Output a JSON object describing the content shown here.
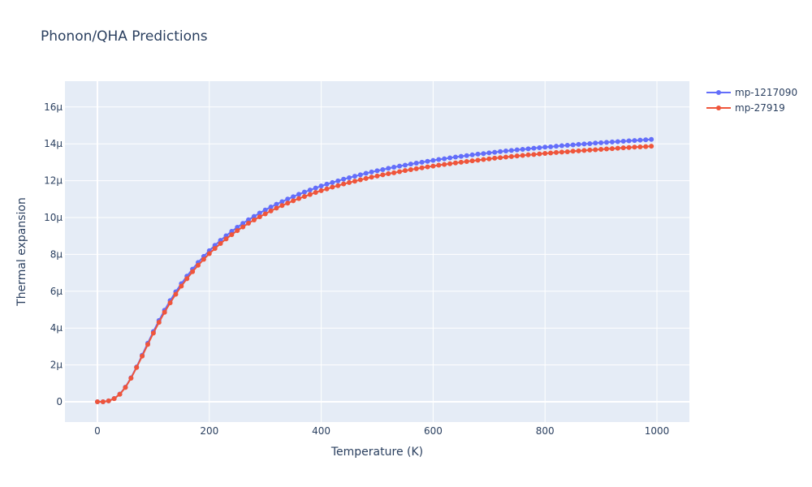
{
  "chart_data": {
    "type": "line",
    "title": "Phonon/QHA Predictions",
    "xlabel": "Temperature (K)",
    "ylabel": "Thermal expansion",
    "xlim": [
      -58,
      1058
    ],
    "ylim": [
      -1.1e-06,
      1.74e-05
    ],
    "xticks": [
      0,
      200,
      400,
      600,
      800,
      1000
    ],
    "xtick_labels": [
      "0",
      "200",
      "400",
      "600",
      "800",
      "1000"
    ],
    "yticks": [
      0,
      2e-06,
      4e-06,
      6e-06,
      8e-06,
      1e-05,
      1.2e-05,
      1.4e-05,
      1.6e-05
    ],
    "ytick_labels": [
      "0",
      "2μ",
      "4μ",
      "6μ",
      "8μ",
      "10μ",
      "12μ",
      "14μ",
      "16μ"
    ],
    "grid": true,
    "legend_position": "top-right",
    "x": [
      0,
      10,
      20,
      30,
      40,
      50,
      60,
      70,
      80,
      90,
      100,
      110,
      120,
      130,
      140,
      150,
      160,
      170,
      180,
      190,
      200,
      210,
      220,
      230,
      240,
      250,
      260,
      270,
      280,
      290,
      300,
      310,
      320,
      330,
      340,
      350,
      360,
      370,
      380,
      390,
      400,
      410,
      420,
      430,
      440,
      450,
      460,
      470,
      480,
      490,
      500,
      510,
      520,
      530,
      540,
      550,
      560,
      570,
      580,
      590,
      600,
      610,
      620,
      630,
      640,
      650,
      660,
      670,
      680,
      690,
      700,
      710,
      720,
      730,
      740,
      750,
      760,
      770,
      780,
      790,
      800,
      810,
      820,
      830,
      840,
      850,
      860,
      870,
      880,
      890,
      900,
      910,
      920,
      930,
      940,
      950,
      960,
      970,
      980,
      990
    ],
    "series": [
      {
        "name": "mp-1217090",
        "color": "#636efa",
        "values": [
          0,
          0,
          5.2e-08,
          1.76e-07,
          4.17e-07,
          7.93e-07,
          1.3e-06,
          1.89e-06,
          2.53e-06,
          3.18e-06,
          3.81e-06,
          4.41e-06,
          4.97e-06,
          5.49e-06,
          5.97e-06,
          6.41e-06,
          6.82e-06,
          7.2e-06,
          7.56e-06,
          7.89e-06,
          8.2e-06,
          8.49e-06,
          8.76e-06,
          9.01e-06,
          9.25e-06,
          9.47e-06,
          9.68e-06,
          9.88e-06,
          1.006e-05,
          1.024e-05,
          1.041e-05,
          1.057e-05,
          1.072e-05,
          1.086e-05,
          1.1e-05,
          1.113e-05,
          1.126e-05,
          1.138e-05,
          1.149e-05,
          1.16e-05,
          1.171e-05,
          1.181e-05,
          1.19e-05,
          1.199e-05,
          1.208e-05,
          1.216e-05,
          1.224e-05,
          1.232e-05,
          1.24e-05,
          1.247e-05,
          1.254e-05,
          1.26e-05,
          1.267e-05,
          1.273e-05,
          1.279e-05,
          1.284e-05,
          1.29e-05,
          1.295e-05,
          1.3e-05,
          1.305e-05,
          1.31e-05,
          1.315e-05,
          1.319e-05,
          1.324e-05,
          1.328e-05,
          1.332e-05,
          1.336e-05,
          1.34e-05,
          1.344e-05,
          1.347e-05,
          1.351e-05,
          1.354e-05,
          1.358e-05,
          1.361e-05,
          1.364e-05,
          1.367e-05,
          1.37e-05,
          1.373e-05,
          1.376e-05,
          1.379e-05,
          1.382e-05,
          1.384e-05,
          1.387e-05,
          1.39e-05,
          1.392e-05,
          1.394e-05,
          1.397e-05,
          1.399e-05,
          1.401e-05,
          1.404e-05,
          1.406e-05,
          1.408e-05,
          1.41e-05,
          1.412e-05,
          1.414e-05,
          1.416e-05,
          1.418e-05,
          1.42e-05,
          1.422e-05,
          1.424e-05
        ]
      },
      {
        "name": "mp-27919",
        "color": "#ef553b",
        "values": [
          0,
          0,
          5e-08,
          1.72e-07,
          4.1e-07,
          7.8e-07,
          1.28e-06,
          1.86e-06,
          2.48e-06,
          3.11e-06,
          3.73e-06,
          4.31e-06,
          4.86e-06,
          5.37e-06,
          5.84e-06,
          6.28e-06,
          6.68e-06,
          7.06e-06,
          7.41e-06,
          7.73e-06,
          8.04e-06,
          8.32e-06,
          8.59e-06,
          8.84e-06,
          9.07e-06,
          9.29e-06,
          9.49e-06,
          9.69e-06,
          9.87e-06,
          1.004e-05,
          1.02e-05,
          1.036e-05,
          1.051e-05,
          1.065e-05,
          1.078e-05,
          1.091e-05,
          1.103e-05,
          1.114e-05,
          1.125e-05,
          1.136e-05,
          1.146e-05,
          1.155e-05,
          1.165e-05,
          1.173e-05,
          1.182e-05,
          1.19e-05,
          1.197e-05,
          1.205e-05,
          1.212e-05,
          1.219e-05,
          1.225e-05,
          1.232e-05,
          1.238e-05,
          1.243e-05,
          1.249e-05,
          1.255e-05,
          1.26e-05,
          1.265e-05,
          1.27e-05,
          1.275e-05,
          1.279e-05,
          1.284e-05,
          1.288e-05,
          1.292e-05,
          1.296e-05,
          1.3e-05,
          1.304e-05,
          1.308e-05,
          1.311e-05,
          1.315e-05,
          1.318e-05,
          1.322e-05,
          1.325e-05,
          1.328e-05,
          1.331e-05,
          1.334e-05,
          1.337e-05,
          1.34e-05,
          1.342e-05,
          1.345e-05,
          1.348e-05,
          1.35e-05,
          1.353e-05,
          1.355e-05,
          1.357e-05,
          1.36e-05,
          1.362e-05,
          1.364e-05,
          1.366e-05,
          1.368e-05,
          1.37e-05,
          1.372e-05,
          1.374e-05,
          1.376e-05,
          1.378e-05,
          1.38e-05,
          1.382e-05,
          1.383e-05,
          1.385e-05,
          1.387e-05
        ]
      }
    ]
  }
}
